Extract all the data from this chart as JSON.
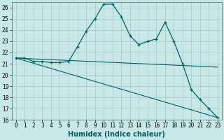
{
  "xlabel": "Humidex (Indice chaleur)",
  "x_ticks": [
    0,
    1,
    2,
    3,
    4,
    5,
    6,
    7,
    8,
    9,
    10,
    11,
    12,
    13,
    14,
    15,
    16,
    17,
    18,
    19,
    20,
    21,
    22,
    23
  ],
  "ylim": [
    16,
    26.5
  ],
  "xlim": [
    -0.5,
    23.5
  ],
  "yticks": [
    16,
    17,
    18,
    19,
    20,
    21,
    22,
    23,
    24,
    25,
    26
  ],
  "bg_color": "#c8e8e8",
  "grid_color": "#b0cccc",
  "line_color": "#006060",
  "series1": {
    "x": [
      0,
      1,
      2,
      3,
      4,
      5,
      6,
      7,
      8,
      9,
      10,
      11,
      12,
      13,
      14,
      15,
      16,
      17,
      18,
      19,
      20,
      21,
      22,
      23
    ],
    "y": [
      21.5,
      21.5,
      21.2,
      21.2,
      21.1,
      21.1,
      21.2,
      22.5,
      23.9,
      25.0,
      26.3,
      26.3,
      25.2,
      23.5,
      22.7,
      23.0,
      23.2,
      24.7,
      23.0,
      21.0,
      18.7,
      17.8,
      17.0,
      16.2
    ]
  },
  "series2": {
    "x": [
      0,
      23
    ],
    "y": [
      21.5,
      20.7
    ]
  },
  "series3": {
    "x": [
      0,
      23
    ],
    "y": [
      21.5,
      16.2
    ]
  },
  "tick_fontsize": 5.5,
  "xlabel_fontsize": 7,
  "xlabel_bold": true
}
